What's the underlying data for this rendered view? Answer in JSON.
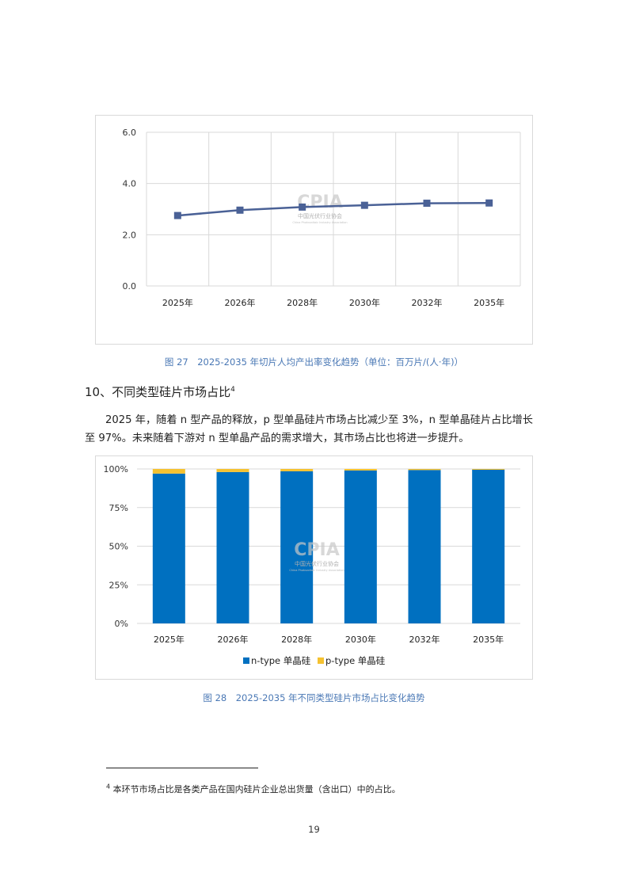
{
  "chart_data": [
    {
      "type": "line",
      "categories": [
        "2025年",
        "2026年",
        "2028年",
        "2030年",
        "2032年",
        "2035年"
      ],
      "series": [
        {
          "values": [
            2.75,
            2.96,
            3.08,
            3.15,
            3.23,
            3.24
          ]
        }
      ],
      "yticks": [
        "0.0",
        "2.0",
        "4.0",
        "6.0"
      ],
      "ylim": [
        0,
        6
      ],
      "grid": true,
      "color": "#4a6196"
    },
    {
      "type": "bar",
      "stacked": true,
      "categories": [
        "2025年",
        "2026年",
        "2028年",
        "2030年",
        "2032年",
        "2035年"
      ],
      "series": [
        {
          "name": "n-type 单晶硅",
          "values": [
            97,
            98,
            98.5,
            99,
            99.3,
            99.5
          ],
          "color": "#0070c0"
        },
        {
          "name": "p-type 单晶硅",
          "values": [
            3,
            2,
            1.5,
            1,
            0.7,
            0.5
          ],
          "color": "#f5c231"
        }
      ],
      "yticks": [
        "0%",
        "25%",
        "50%",
        "75%",
        "100%"
      ],
      "ylim": [
        0,
        100
      ],
      "grid": true,
      "legend": "bottom"
    }
  ],
  "watermark": {
    "logo_text": "CPIA",
    "org_text": "中国光伏行业协会",
    "sub_text": "China Photovoltaic Industry Association"
  },
  "figure27_caption": "图 27　2025-2035 年切片人均产出率变化趋势（单位：百万片/(人·年)）",
  "section": {
    "title": "10、不同类型硅片市场占比",
    "note_ref": "4"
  },
  "paragraph": {
    "line1": "2025 年，随着 n 型产品的释放，p 型单晶硅片市场占比减少至 3%，n 型单晶硅片占比增长",
    "line2": "至 97%。未来随着下游对 n 型单晶产品的需求增大，其市场占比也将进一步提升。"
  },
  "figure28_caption": "图 28　2025-2035 年不同类型硅片市场占比变化趋势",
  "footnote": {
    "mark": "4",
    "text": "本环节市场占比是各类产品在国内硅片企业总出货量（含出口）中的占比。"
  },
  "page_number": "19"
}
